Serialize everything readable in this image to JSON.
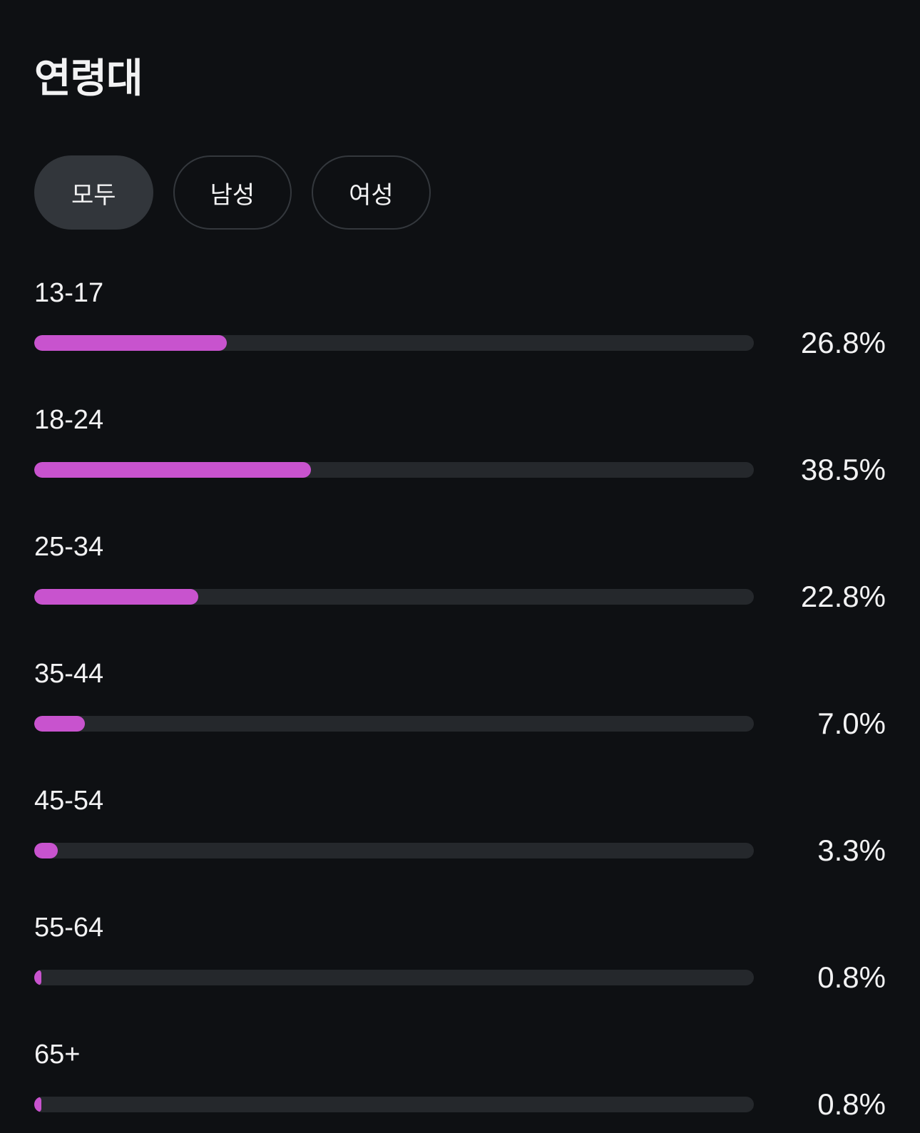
{
  "page": {
    "title": "연령대"
  },
  "filters": {
    "all": {
      "label": "모두",
      "selected": true
    },
    "male": {
      "label": "남성",
      "selected": false
    },
    "female": {
      "label": "여성",
      "selected": false
    }
  },
  "chart_data": {
    "type": "bar",
    "orientation": "horizontal",
    "title": "연령대",
    "categories": [
      "13-17",
      "18-24",
      "25-34",
      "35-44",
      "45-54",
      "55-64",
      "65+"
    ],
    "values": [
      26.8,
      38.5,
      22.8,
      7.0,
      3.3,
      0.8,
      0.8
    ],
    "value_labels": [
      "26.8%",
      "38.5%",
      "22.8%",
      "7.0%",
      "3.3%",
      "0.8%",
      "0.8%"
    ],
    "xlim": [
      0,
      100
    ],
    "grid": false,
    "legend": false,
    "bar_color": "#c853ce",
    "track_color": "#25282c"
  },
  "colors": {
    "background": "#0e1013",
    "bar_fill": "#c853ce",
    "bar_track": "#25282c",
    "text": "#f2f2f3",
    "pill_selected_bg": "#32363b",
    "pill_border": "#34383d"
  }
}
